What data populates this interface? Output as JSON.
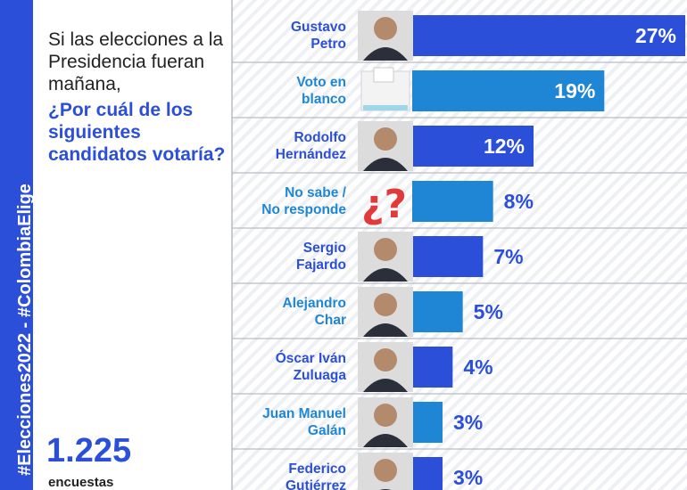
{
  "sidebar": {
    "hashtag": "#Elecciones2022 - #ColombiaElige"
  },
  "question": {
    "line1": "Si las elecciones a la Presidencia fueran mañana,",
    "line2": "¿Por cuál de los siguientes candidatos votaría?"
  },
  "sample": {
    "count": "1.225",
    "label": "encuestas"
  },
  "colors": {
    "primary": "#2b4fd9",
    "secondary": "#1f86d6",
    "stripe": "#eef0f4",
    "divider": "#b9bcc4",
    "qmark": "#e23a3a"
  },
  "chart_data": {
    "type": "bar",
    "orientation": "horizontal",
    "unit": "%",
    "xlim": [
      0,
      27
    ],
    "categories": [
      [
        "Gustavo",
        "Petro"
      ],
      [
        "Voto en",
        "blanco"
      ],
      [
        "Rodolfo",
        "Hernández"
      ],
      [
        "No sabe /",
        "No responde"
      ],
      [
        "Sergio",
        "Fajardo"
      ],
      [
        "Alejandro",
        "Char"
      ],
      [
        "Óscar Iván",
        "Zuluaga"
      ],
      [
        "Juan Manuel",
        "Galán"
      ],
      [
        "Federico",
        "Gutiérrez"
      ]
    ],
    "values": [
      27,
      19,
      12,
      8,
      7,
      5,
      4,
      3,
      3
    ],
    "labels": [
      "27%",
      "19%",
      "12%",
      "8%",
      "7%",
      "5%",
      "4%",
      "3%",
      "3%"
    ],
    "bar_colors": [
      "#2b4fd9",
      "#1f86d6",
      "#2b4fd9",
      "#1f86d6",
      "#2b4fd9",
      "#1f86d6",
      "#2b4fd9",
      "#1f86d6",
      "#2b4fd9"
    ],
    "name_colors": [
      "#2b4fd9",
      "#1f86d6",
      "#2b4fd9",
      "#1f86d6",
      "#2b4fd9",
      "#1f86d6",
      "#2b4fd9",
      "#1f86d6",
      "#2b4fd9"
    ],
    "icons": [
      "candidate-photo",
      "ballot-box-icon",
      "candidate-photo",
      "question-mark-icon",
      "candidate-photo",
      "candidate-photo",
      "candidate-photo",
      "candidate-photo",
      "candidate-photo"
    ],
    "value_label_inside": [
      true,
      true,
      true,
      false,
      false,
      false,
      false,
      false,
      false
    ]
  }
}
